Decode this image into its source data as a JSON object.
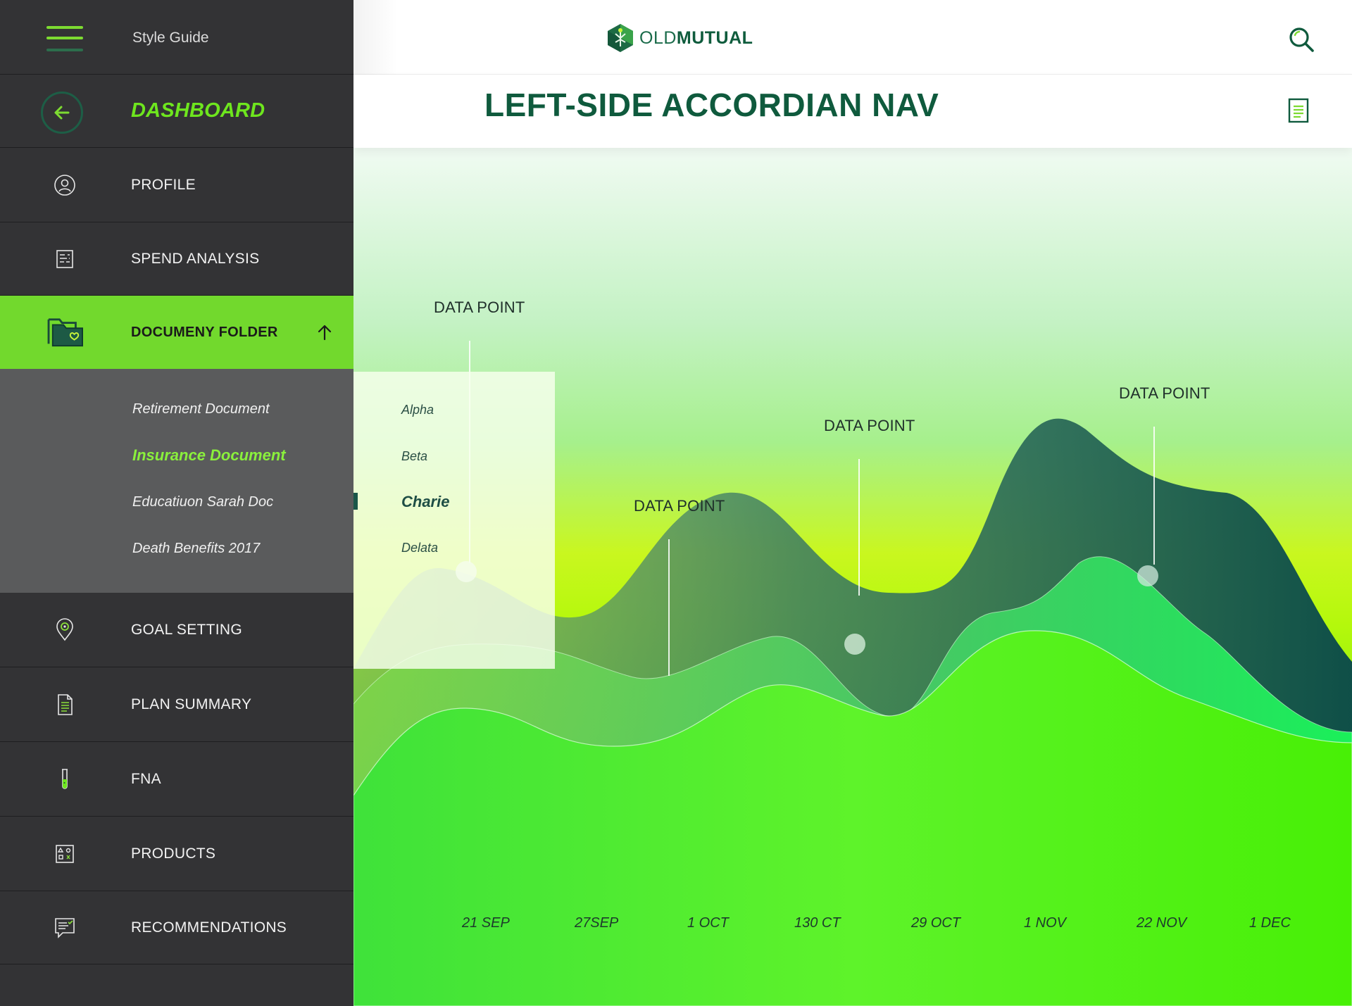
{
  "sidebar": {
    "style_guide": "Style Guide",
    "dashboard": "DASHBOARD",
    "items": [
      {
        "label": "PROFILE",
        "icon": "user-icon"
      },
      {
        "label": "SPEND ANALYSIS",
        "icon": "report-icon"
      },
      {
        "label": "DOCUMENY FOLDER",
        "icon": "folder-heart-icon",
        "expanded": true
      },
      {
        "label": "GOAL SETTING",
        "icon": "location-pin-icon"
      },
      {
        "label": "PLAN SUMMARY",
        "icon": "document-icon"
      },
      {
        "label": "FNA",
        "icon": "test-tube-icon"
      },
      {
        "label": "PRODUCTS",
        "icon": "shapes-icon"
      },
      {
        "label": "RECOMMENDATIONS",
        "icon": "chat-list-icon"
      }
    ],
    "sub_items": [
      {
        "label": "Retirement Document",
        "active": false
      },
      {
        "label": "Insurance Document",
        "active": true
      },
      {
        "label": "Educatiuon Sarah Doc",
        "active": false
      },
      {
        "label": "Death Benefits 2017",
        "active": false
      }
    ]
  },
  "header": {
    "logo_light": "OLD",
    "logo_bold": "MUTUAL",
    "page_title": "LEFT-SIDE ACCORDIAN NAV"
  },
  "dropdown": {
    "items": [
      "Alpha",
      "Beta",
      "Charie",
      "Delata"
    ],
    "active_index": 2
  },
  "chart_data": {
    "type": "area",
    "categories": [
      "21 SEP",
      "27SEP",
      "1 OCT",
      "130 CT",
      "29 OCT",
      "1 NOV",
      "22 NOV",
      "1 DEC"
    ],
    "annotations": [
      "DATA POINT",
      "DATA POINT",
      "DATA POINT",
      "DATA POINT"
    ],
    "series_colors": [
      "#14534b",
      "#2eed4f",
      "#3fe420"
    ]
  },
  "colors": {
    "accent": "#72d92d",
    "brand_dark": "#0f5a3d",
    "sidebar_bg": "#333335",
    "submenu_bg": "#5a5b5c"
  }
}
